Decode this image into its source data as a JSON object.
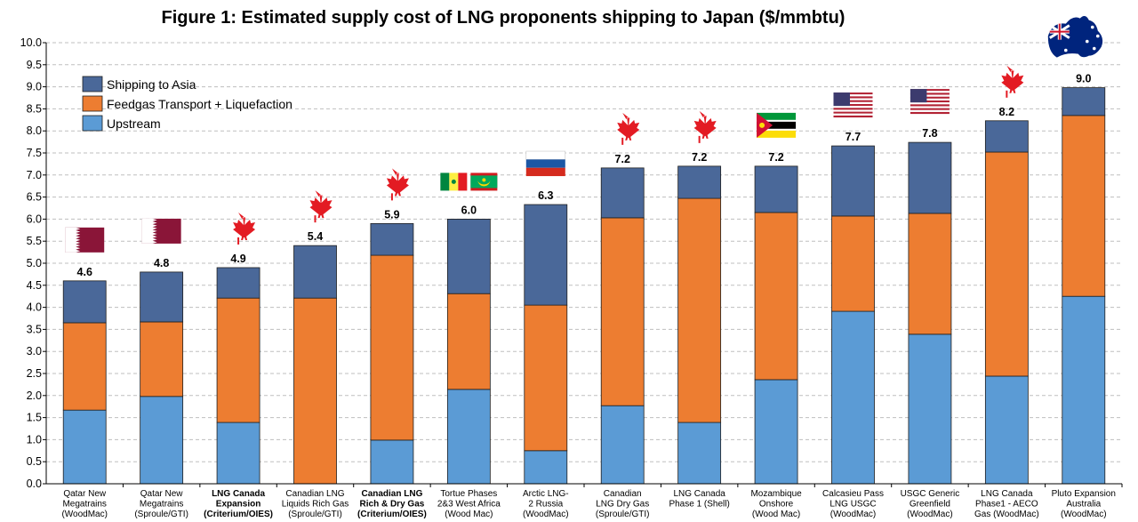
{
  "chart_data": {
    "type": "bar",
    "stacked": true,
    "title": "Figure 1: Estimated supply cost of LNG proponents shipping to Japan ($/mmbtu)",
    "xlabel": "",
    "ylabel": "",
    "ylim": [
      0,
      10
    ],
    "yticks": [
      "0.0",
      "0.5",
      "1.0",
      "1.5",
      "2.0",
      "2.5",
      "3.0",
      "3.5",
      "4.0",
      "4.5",
      "5.0",
      "5.5",
      "6.0",
      "6.5",
      "7.0",
      "7.5",
      "8.0",
      "8.5",
      "9.0",
      "9.5",
      "10.0"
    ],
    "grid": true,
    "legend_position": "top-left",
    "categories": [
      {
        "lines": [
          "Qatar New",
          "Megatrains",
          "(WoodMac)"
        ],
        "bold": false,
        "flag": "qatar-flag"
      },
      {
        "lines": [
          "Qatar New",
          "Megatrains",
          "(Sproule/GTI)"
        ],
        "bold": false,
        "flag": "qatar-flag"
      },
      {
        "lines": [
          "LNG Canada",
          "Expansion",
          "(Criterium/OIES)"
        ],
        "bold": true,
        "flag": "canada-maple-leaf"
      },
      {
        "lines": [
          "Canadian LNG",
          "Liquids Rich Gas",
          "(Sproule/GTI)"
        ],
        "bold": false,
        "flag": "canada-maple-leaf"
      },
      {
        "lines": [
          "Canadian LNG",
          "Rich & Dry Gas",
          "(Criterium/OIES)"
        ],
        "bold": true,
        "flag": "canada-maple-leaf"
      },
      {
        "lines": [
          "Tortue Phases",
          "2&3 West Africa",
          "(Wood Mac)"
        ],
        "bold": false,
        "flag": "senegal-mauritania-flags"
      },
      {
        "lines": [
          "Arctic LNG-",
          "2  Russia",
          "(WoodMac)"
        ],
        "bold": false,
        "flag": "russia-flag"
      },
      {
        "lines": [
          "Canadian",
          "LNG Dry Gas",
          "(Sproule/GTI)"
        ],
        "bold": false,
        "flag": "canada-maple-leaf"
      },
      {
        "lines": [
          "LNG Canada",
          "Phase 1 (Shell)"
        ],
        "bold": false,
        "flag": "canada-maple-leaf"
      },
      {
        "lines": [
          "Mozambique",
          "Onshore",
          "(Wood Mac)"
        ],
        "bold": false,
        "flag": "mozambique-flag"
      },
      {
        "lines": [
          "Calcasieu Pass",
          "LNG USGC",
          "(WoodMac)"
        ],
        "bold": false,
        "flag": "usa-flag"
      },
      {
        "lines": [
          "USGC Generic",
          "Greenfield",
          "(WoodMac)"
        ],
        "bold": false,
        "flag": "usa-flag"
      },
      {
        "lines": [
          "LNG Canada",
          "Phase1 - AECO",
          "Gas (WoodMac)"
        ],
        "bold": false,
        "flag": "canada-maple-leaf"
      },
      {
        "lines": [
          "Pluto Expansion",
          "Australia",
          "(WoodMac)"
        ],
        "bold": false,
        "flag": "australia-flag"
      }
    ],
    "series": [
      {
        "name": "Upstream",
        "color": "#5b9bd5",
        "values": [
          1.67,
          1.98,
          1.39,
          0.0,
          0.99,
          2.14,
          0.75,
          1.77,
          1.39,
          2.36,
          3.91,
          3.39,
          2.44,
          4.25
        ]
      },
      {
        "name": "Feedgas Transport + Liquefaction",
        "color": "#ed7d31",
        "values": [
          1.98,
          1.69,
          2.82,
          4.21,
          4.19,
          2.17,
          3.3,
          4.26,
          5.08,
          3.79,
          2.16,
          2.74,
          5.08,
          4.1
        ]
      },
      {
        "name": "Shipping to Asia",
        "color": "#4a6899",
        "values": [
          0.95,
          1.13,
          0.69,
          1.19,
          0.72,
          1.69,
          2.28,
          1.13,
          0.73,
          1.05,
          1.59,
          1.61,
          0.71,
          0.63
        ]
      }
    ],
    "totals": [
      "4.6",
      "4.8",
      "4.9",
      "5.4",
      "5.9",
      "6.0",
      "6.3",
      "7.2",
      "7.2",
      "7.2",
      "7.7",
      "7.8",
      "8.2",
      "9.0"
    ],
    "legend_order": [
      "Shipping to Asia",
      "Feedgas Transport + Liquefaction",
      "Upstream"
    ]
  }
}
